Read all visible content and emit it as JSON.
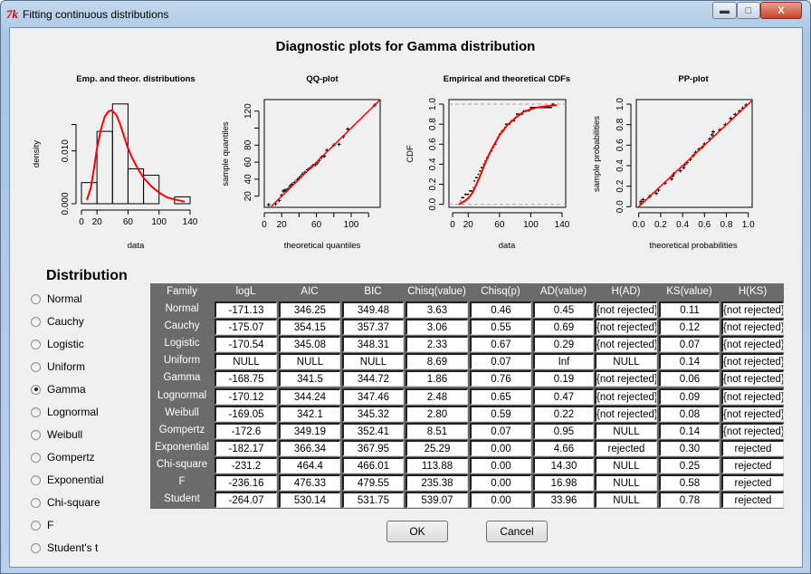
{
  "window": {
    "title": "Fitting continuous distributions",
    "icon": "tk-feather-icon"
  },
  "main_title": "Diagnostic plots for Gamma distribution",
  "chart_data": [
    {
      "type": "bar",
      "title": "Emp. and theor. distributions",
      "xlabel": "data",
      "ylabel": "density",
      "bins": [
        [
          0,
          20
        ],
        [
          20,
          40
        ],
        [
          40,
          60
        ],
        [
          60,
          80
        ],
        [
          80,
          100
        ],
        [
          100,
          120
        ],
        [
          120,
          140
        ]
      ],
      "values": [
        0.004,
        0.0137,
        0.0189,
        0.0066,
        0.0054,
        0,
        0.0013
      ],
      "xticks": [
        "0",
        "20",
        "60",
        "100",
        "140"
      ],
      "xtick_values": [
        0,
        20,
        60,
        100,
        140
      ],
      "yticks": [
        "0.000",
        "0.010"
      ],
      "ytick_values": [
        0,
        0.01
      ],
      "curve_color": "#ff0000",
      "curve": [
        [
          7,
          0.0007
        ],
        [
          12,
          0.003
        ],
        [
          16,
          0.0065
        ],
        [
          20,
          0.0105
        ],
        [
          25,
          0.014
        ],
        [
          30,
          0.0165
        ],
        [
          35,
          0.0175
        ],
        [
          39,
          0.0177
        ],
        [
          45,
          0.0168
        ],
        [
          50,
          0.015
        ],
        [
          55,
          0.0127
        ],
        [
          60,
          0.0105
        ],
        [
          65,
          0.0088
        ],
        [
          72,
          0.0068
        ],
        [
          80,
          0.0049
        ],
        [
          90,
          0.0033
        ],
        [
          100,
          0.0021
        ],
        [
          110,
          0.0012
        ],
        [
          120,
          0.0008
        ],
        [
          133,
          0.0004
        ]
      ]
    },
    {
      "type": "scatter",
      "title": "QQ-plot",
      "xlabel": "theoretical quantiles",
      "ylabel": "sample quantiles",
      "xticks": [
        "0",
        "20",
        "60",
        "100"
      ],
      "xtick_values": [
        0,
        20,
        40,
        60,
        80,
        100,
        120
      ],
      "xtick_labeled": [
        0,
        20,
        60,
        100
      ],
      "yticks": [
        "20",
        "40",
        "60",
        "80",
        "120"
      ],
      "ytick_values": [
        20,
        40,
        60,
        80,
        100,
        120
      ],
      "ytick_labeled": [
        20,
        40,
        60,
        80,
        120
      ],
      "line_color": "#ff0000",
      "line": [
        [
          8,
          8
        ],
        [
          133,
          133
        ]
      ],
      "points": [
        [
          5,
          10
        ],
        [
          13,
          11
        ],
        [
          17,
          15
        ],
        [
          20,
          21
        ],
        [
          22,
          26
        ],
        [
          24,
          27
        ],
        [
          26,
          27
        ],
        [
          28,
          29
        ],
        [
          30,
          32
        ],
        [
          32,
          34
        ],
        [
          35,
          36
        ],
        [
          38,
          39
        ],
        [
          40,
          41
        ],
        [
          42,
          43
        ],
        [
          44,
          46
        ],
        [
          47,
          48
        ],
        [
          50,
          51
        ],
        [
          53,
          53
        ],
        [
          56,
          56
        ],
        [
          59,
          57
        ],
        [
          61,
          59
        ],
        [
          63,
          62
        ],
        [
          66,
          66
        ],
        [
          69,
          67
        ],
        [
          72,
          74
        ],
        [
          80,
          80
        ],
        [
          86,
          81
        ],
        [
          91,
          90
        ],
        [
          96,
          99
        ],
        [
          127,
          127
        ]
      ]
    },
    {
      "type": "line",
      "title": "Empirical and theoretical CDFs",
      "xlabel": "data",
      "ylabel": "CDF",
      "xticks": [
        "0",
        "20",
        "60",
        "100",
        "140"
      ],
      "xtick_values": [
        0,
        20,
        60,
        100,
        140
      ],
      "yticks": [
        "0.0",
        "0.2",
        "0.4",
        "0.6",
        "0.8",
        "1.0"
      ],
      "ytick_values": [
        0,
        0.2,
        0.4,
        0.6,
        0.8,
        1.0
      ],
      "curve_color": "#ff0000",
      "curve": [
        [
          8,
          0
        ],
        [
          15,
          0.03
        ],
        [
          20,
          0.06
        ],
        [
          25,
          0.11
        ],
        [
          30,
          0.19
        ],
        [
          35,
          0.28
        ],
        [
          40,
          0.38
        ],
        [
          45,
          0.47
        ],
        [
          50,
          0.55
        ],
        [
          55,
          0.62
        ],
        [
          60,
          0.69
        ],
        [
          70,
          0.79
        ],
        [
          80,
          0.86
        ],
        [
          90,
          0.92
        ],
        [
          100,
          0.95
        ],
        [
          110,
          0.97
        ],
        [
          120,
          0.98
        ],
        [
          133,
          0.99
        ]
      ],
      "empirical": [
        10,
        11,
        15,
        21,
        26,
        27,
        27,
        29,
        32,
        34,
        36,
        39,
        41,
        43,
        46,
        48,
        51,
        53,
        56,
        57,
        59,
        62,
        66,
        67,
        74,
        80,
        81,
        90,
        99,
        127
      ]
    },
    {
      "type": "scatter",
      "title": "PP-plot",
      "xlabel": "theoretical probabilities",
      "ylabel": "sample probabilities",
      "xticks": [
        "0.0",
        "0.2",
        "0.4",
        "0.6",
        "0.8",
        "1.0"
      ],
      "xtick_values": [
        0,
        0.2,
        0.4,
        0.6,
        0.8,
        1.0
      ],
      "yticks": [
        "0.0",
        "0.2",
        "0.4",
        "0.6",
        "0.8",
        "1.0"
      ],
      "ytick_values": [
        0,
        0.2,
        0.4,
        0.6,
        0.8,
        1.0
      ],
      "line_color": "#ff0000",
      "line": [
        [
          -0.01,
          -0.01
        ],
        [
          1.03,
          1.03
        ]
      ],
      "points": [
        [
          0.02,
          0.03
        ],
        [
          0.02,
          0.05
        ],
        [
          0.04,
          0.07
        ],
        [
          0.1,
          0.1
        ],
        [
          0.16,
          0.13
        ],
        [
          0.18,
          0.16
        ],
        [
          0.24,
          0.23
        ],
        [
          0.3,
          0.27
        ],
        [
          0.31,
          0.3
        ],
        [
          0.32,
          0.32
        ],
        [
          0.38,
          0.35
        ],
        [
          0.41,
          0.38
        ],
        [
          0.42,
          0.41
        ],
        [
          0.44,
          0.43
        ],
        [
          0.47,
          0.46
        ],
        [
          0.5,
          0.5
        ],
        [
          0.52,
          0.53
        ],
        [
          0.55,
          0.56
        ],
        [
          0.58,
          0.58
        ],
        [
          0.6,
          0.61
        ],
        [
          0.65,
          0.66
        ],
        [
          0.67,
          0.7
        ],
        [
          0.68,
          0.73
        ],
        [
          0.74,
          0.75
        ],
        [
          0.79,
          0.8
        ],
        [
          0.84,
          0.86
        ],
        [
          0.88,
          0.9
        ],
        [
          0.92,
          0.93
        ],
        [
          0.95,
          0.96
        ],
        [
          0.98,
          0.99
        ]
      ]
    }
  ],
  "distribution": {
    "title": "Distribution",
    "selected": "Gamma",
    "options": [
      "Normal",
      "Cauchy",
      "Logistic",
      "Uniform",
      "Gamma",
      "Lognormal",
      "Weibull",
      "Gompertz",
      "Exponential",
      "Chi-square",
      "F",
      "Student's t"
    ]
  },
  "table": {
    "columns": [
      "Family",
      "logL",
      "AIC",
      "BIC",
      "Chisq(value)",
      "Chisq(p)",
      "AD(value)",
      "H(AD)",
      "KS(value)",
      "H(KS)"
    ],
    "rows": [
      [
        "Normal",
        "-171.13",
        "346.25",
        "349.48",
        "3.63",
        "0.46",
        "0.45",
        "{not rejected}",
        "0.11",
        "{not rejected}"
      ],
      [
        "Cauchy",
        "-175.07",
        "354.15",
        "357.37",
        "3.06",
        "0.55",
        "0.69",
        "{not rejected}",
        "0.12",
        "{not rejected}"
      ],
      [
        "Logistic",
        "-170.54",
        "345.08",
        "348.31",
        "2.33",
        "0.67",
        "0.29",
        "{not rejected}",
        "0.07",
        "{not rejected}"
      ],
      [
        "Uniform",
        "NULL",
        "NULL",
        "NULL",
        "8.69",
        "0.07",
        "Inf",
        "NULL",
        "0.14",
        "{not rejected}"
      ],
      [
        "Gamma",
        "-168.75",
        "341.5",
        "344.72",
        "1.86",
        "0.76",
        "0.19",
        "{not rejected}",
        "0.06",
        "{not rejected}"
      ],
      [
        "Lognormal",
        "-170.12",
        "344.24",
        "347.46",
        "2.48",
        "0.65",
        "0.47",
        "{not rejected}",
        "0.09",
        "{not rejected}"
      ],
      [
        "Weibull",
        "-169.05",
        "342.1",
        "345.32",
        "2.80",
        "0.59",
        "0.22",
        "{not rejected}",
        "0.08",
        "{not rejected}"
      ],
      [
        "Gompertz",
        "-172.6",
        "349.19",
        "352.41",
        "8.51",
        "0.07",
        "0.95",
        "NULL",
        "0.14",
        "{not rejected}"
      ],
      [
        "Exponential",
        "-182.17",
        "366.34",
        "367.95",
        "25.29",
        "0.00",
        "4.66",
        "rejected",
        "0.30",
        "rejected"
      ],
      [
        "Chi-square",
        "-231.2",
        "464.4",
        "466.01",
        "113.88",
        "0.00",
        "14.30",
        "NULL",
        "0.25",
        "rejected"
      ],
      [
        "F",
        "-236.16",
        "476.33",
        "479.55",
        "235.38",
        "0.00",
        "16.98",
        "NULL",
        "0.58",
        "rejected"
      ],
      [
        "Student",
        "-264.07",
        "530.14",
        "531.75",
        "539.07",
        "0.00",
        "33.96",
        "NULL",
        "0.78",
        "rejected"
      ]
    ]
  },
  "buttons": {
    "ok": "OK",
    "cancel": "Cancel"
  }
}
